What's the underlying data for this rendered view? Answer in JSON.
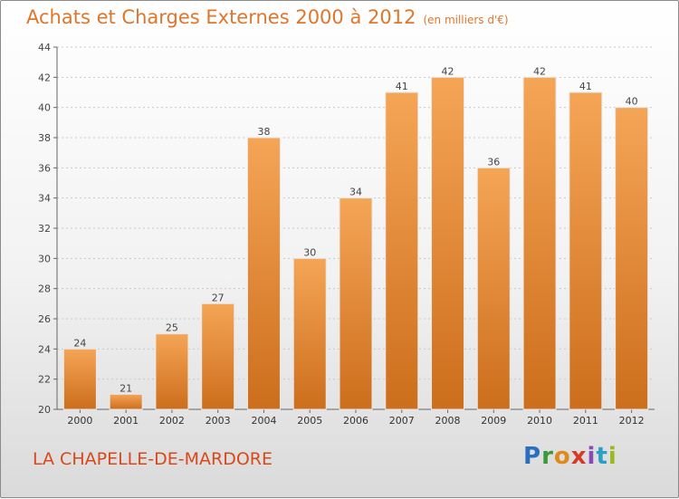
{
  "header": {
    "title": "Achats et Charges Externes 2000 à 2012",
    "unit": "(en milliers d'€)"
  },
  "footer": {
    "commune": "LA CHAPELLE-DE-MARDORE",
    "brand_letters": [
      "P",
      "r",
      "o",
      "x",
      "i",
      "t",
      "i"
    ],
    "brand_colors": [
      "#2a6fbe",
      "#3a9a3a",
      "#e08a1a",
      "#d63a2a",
      "#8a4ab8",
      "#2aa0c8",
      "#9ab820"
    ]
  },
  "colors": {
    "title": "#e0762c",
    "commune": "#d9481a",
    "bar_top": "#f5a556",
    "bar_bottom": "#cc6e1c"
  },
  "chart_data": {
    "type": "bar",
    "title": "Achats et Charges Externes 2000 à 2012",
    "xlabel": "",
    "ylabel": "",
    "categories": [
      "2000",
      "2001",
      "2002",
      "2003",
      "2004",
      "2005",
      "2006",
      "2007",
      "2008",
      "2009",
      "2010",
      "2011",
      "2012"
    ],
    "values": [
      24,
      21,
      25,
      27,
      38,
      30,
      34,
      41,
      42,
      36,
      42,
      41,
      40
    ],
    "ylim": [
      20,
      44
    ],
    "yticks": [
      20,
      22,
      24,
      26,
      28,
      30,
      32,
      34,
      36,
      38,
      40,
      42,
      44
    ],
    "grid": "horizontal dashed",
    "data_labels": true
  }
}
